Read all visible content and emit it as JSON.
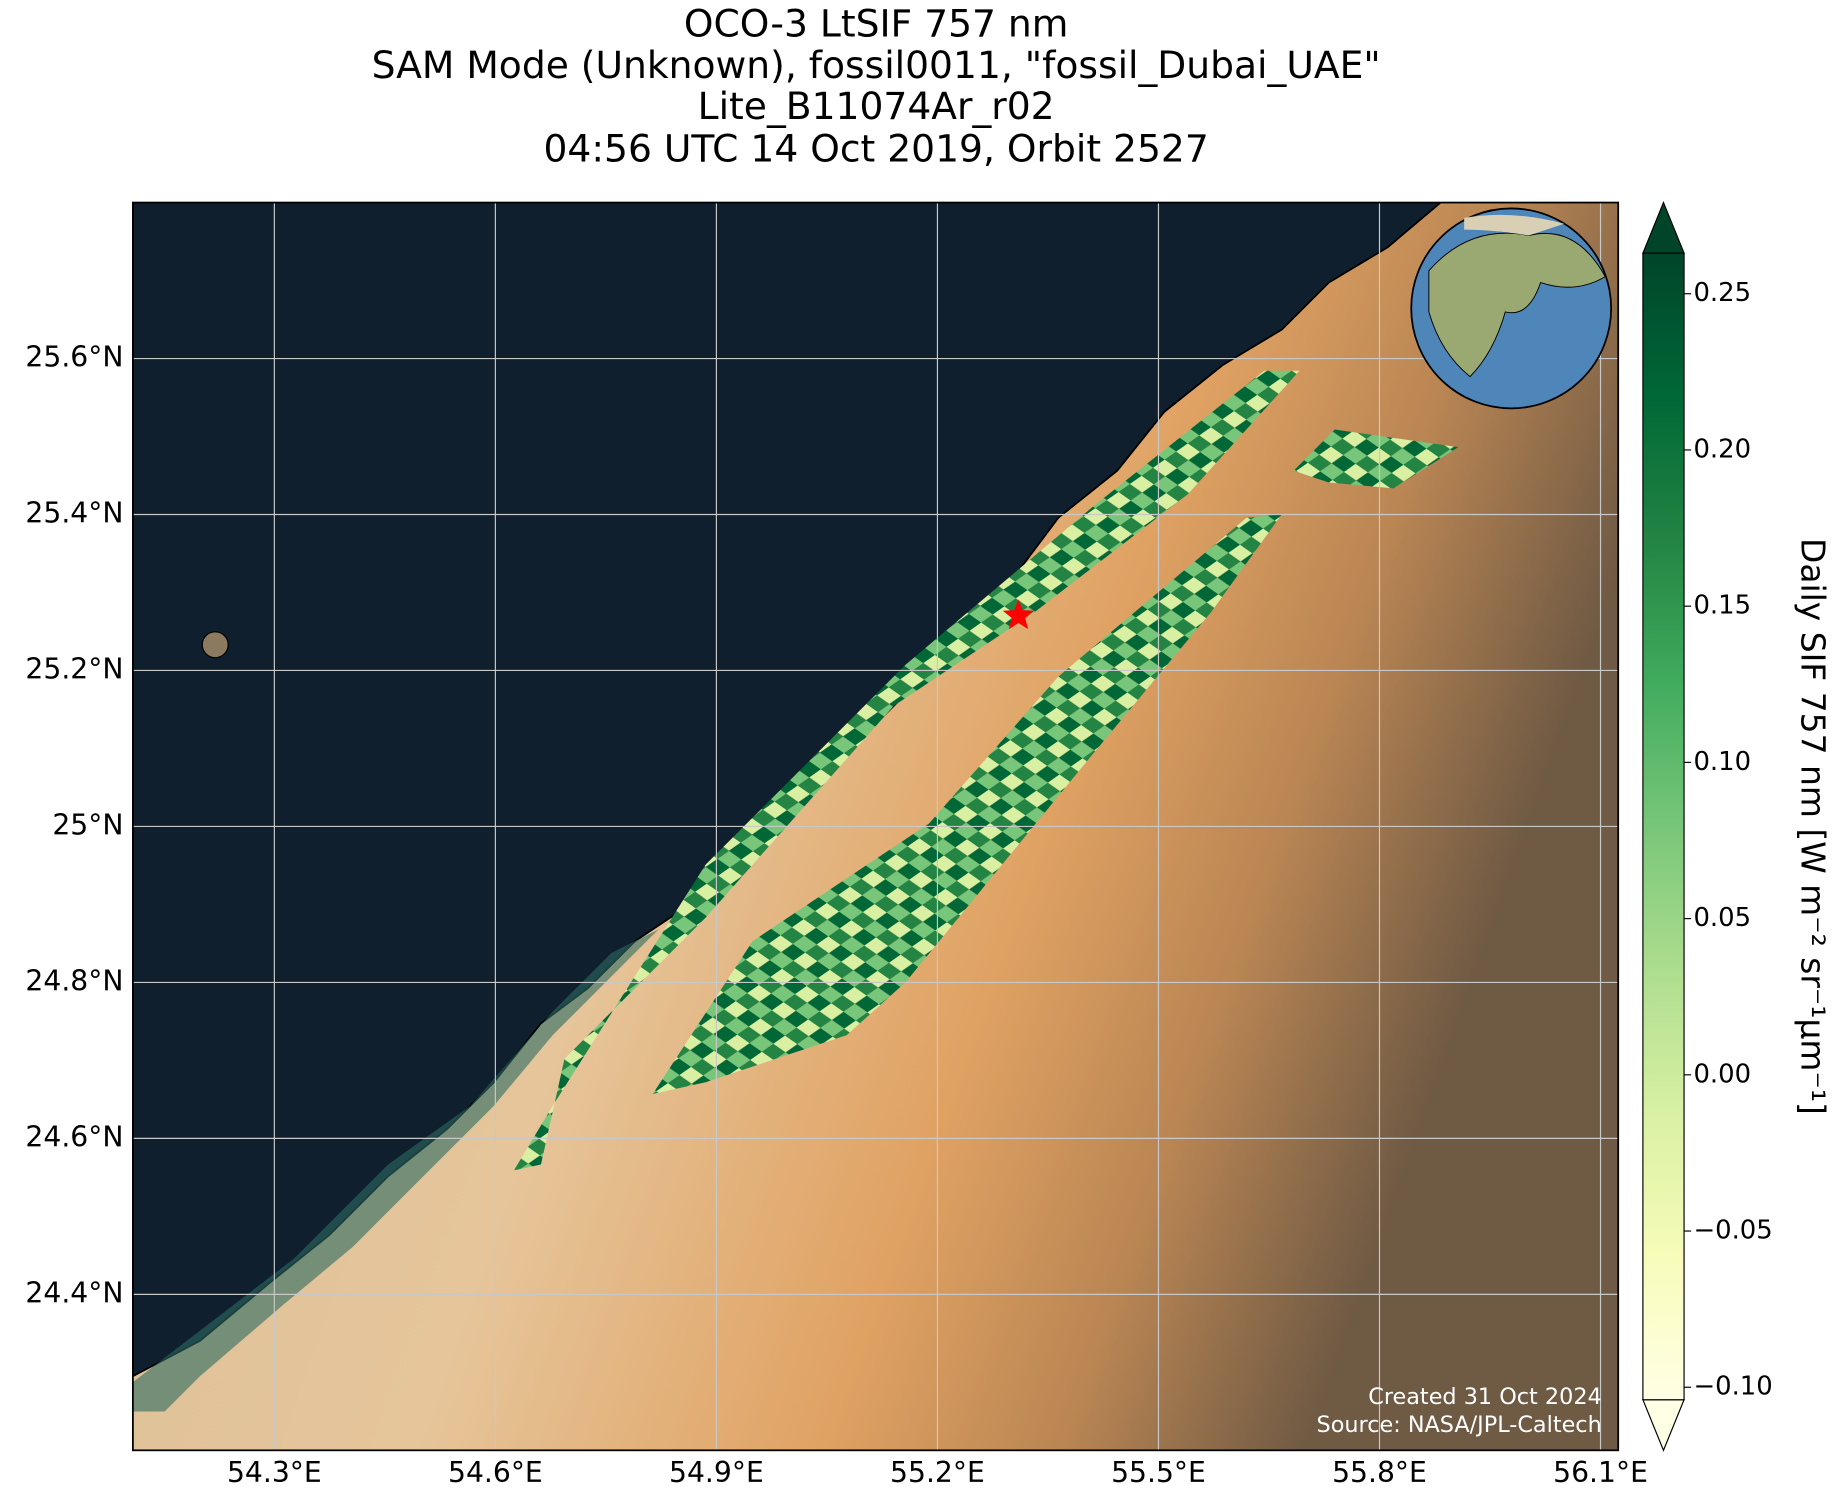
{
  "chart_data": {
    "type": "map",
    "title": [
      "OCO-3 LtSIF 757 nm",
      "SAM Mode (Unknown), fossil0011, \"fossil_Dubai_UAE\"",
      "Lite_B11074Ar_r02",
      "04:56 UTC 14 Oct 2019, Orbit 2527"
    ],
    "xlim": [
      54.108,
      56.124
    ],
    "ylim": [
      24.2,
      25.8
    ],
    "xticks": [
      {
        "value": 54.3,
        "label": "54.3°E"
      },
      {
        "value": 54.6,
        "label": "54.6°E"
      },
      {
        "value": 54.9,
        "label": "54.9°E"
      },
      {
        "value": 55.2,
        "label": "55.2°E"
      },
      {
        "value": 55.5,
        "label": "55.5°E"
      },
      {
        "value": 55.8,
        "label": "55.8°E"
      },
      {
        "value": 56.1,
        "label": "56.1°E"
      }
    ],
    "yticks": [
      {
        "value": 24.4,
        "label": "24.4°N"
      },
      {
        "value": 24.6,
        "label": "24.6°N"
      },
      {
        "value": 24.8,
        "label": "24.8°N"
      },
      {
        "value": 25,
        "label": "25°N"
      },
      {
        "value": 25.2,
        "label": "25.2°N"
      },
      {
        "value": 25.4,
        "label": "25.4°N"
      },
      {
        "value": 25.6,
        "label": "25.6°N"
      }
    ],
    "grid": true,
    "target": {
      "lon": 55.31,
      "lat": 25.27,
      "color": "#ff0000"
    },
    "colorbar": {
      "label": "Daily SIF 757 nm [W m⁻² sr⁻¹µm⁻¹]",
      "clim": [
        -0.104,
        0.263
      ],
      "colormap": [
        "#ffffe5",
        "#f7fcb9",
        "#d9f0a3",
        "#addd8e",
        "#78c679",
        "#41ab5d",
        "#238443",
        "#006837",
        "#004529"
      ],
      "ticks": [
        {
          "value": -0.1,
          "label": "−0.10"
        },
        {
          "value": -0.05,
          "label": "−0.05"
        },
        {
          "value": 0,
          "label": "0.00"
        },
        0.05,
        {
          "value": 0.1,
          "label": "0.10"
        },
        0.15,
        {
          "value": 0.2,
          "label": "0.20"
        },
        0.25
      ]
    },
    "annotations": [
      "Created 31 Oct 2024",
      "Source: NASA/JPL-Caltech"
    ]
  }
}
